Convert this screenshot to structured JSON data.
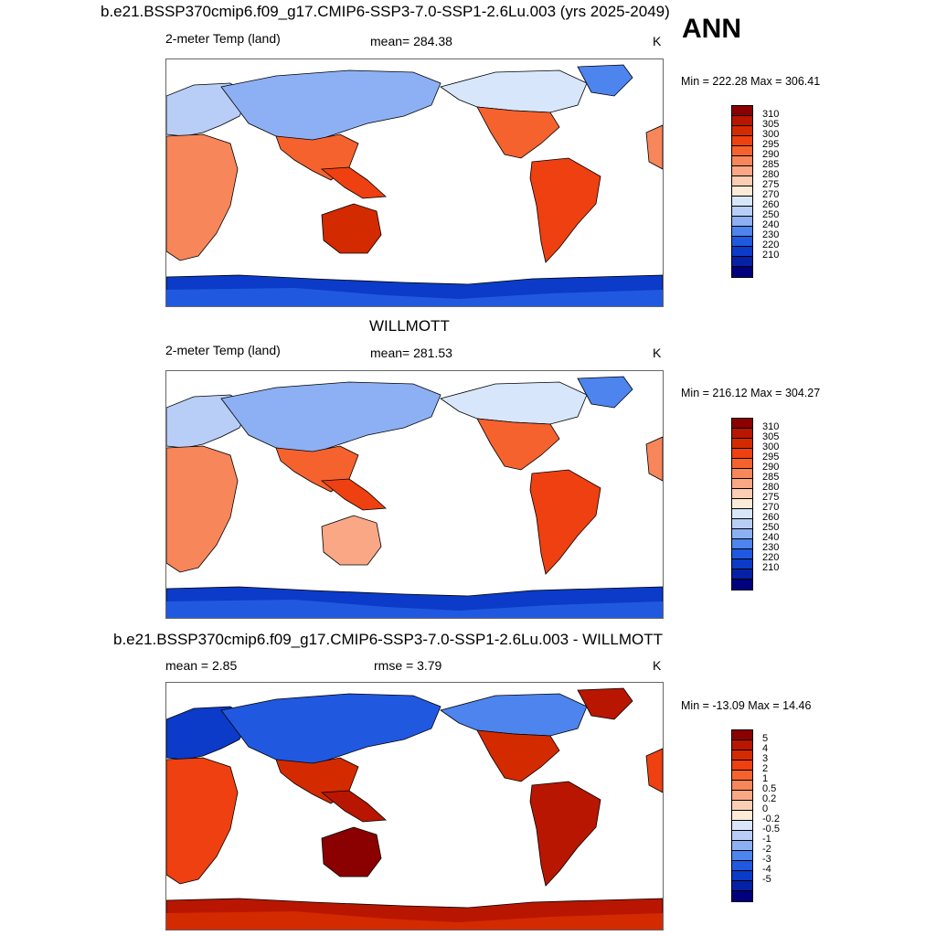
{
  "panels": [
    {
      "title": "b.e21.BSSP370cmip6.f09_g17.CMIP6-SSP3-7.0-SSP1-2.6Lu.003 (yrs 2025-2049)",
      "left_label": "2-meter Temp (land)",
      "center_label": "mean= 284.38",
      "right_label": "K",
      "minmax": "Min = 222.28 Max = 306.41",
      "colorbar_labels": [
        "310",
        "305",
        "300",
        "295",
        "290",
        "285",
        "280",
        "275",
        "270",
        "260",
        "250",
        "240",
        "230",
        "220",
        "210"
      ],
      "colors": [
        "#8b0000",
        "#b81600",
        "#d42a00",
        "#ee4010",
        "#f5622e",
        "#f7865a",
        "#f9a785",
        "#fbcdb3",
        "#fdebd8",
        "#d8e6fb",
        "#b8cef7",
        "#8cb0f3",
        "#4d84ee",
        "#2059e0",
        "#0b3bc8",
        "#0621a5",
        "#00007f"
      ],
      "warm_colors": [
        "#f5622e",
        "#ee4010",
        "#f7865a",
        "#d42a00"
      ],
      "cold_colors": [
        "#b8cef7",
        "#8cb0f3",
        "#d8e6fb",
        "#4d84ee"
      ]
    },
    {
      "title": "WILLMOTT",
      "left_label": "2-meter Temp (land)",
      "center_label": "mean= 281.53",
      "right_label": "K",
      "minmax": "Min = 216.12 Max = 304.27",
      "colorbar_labels": [
        "310",
        "305",
        "300",
        "295",
        "290",
        "285",
        "280",
        "275",
        "270",
        "260",
        "250",
        "240",
        "230",
        "220",
        "210"
      ],
      "colors": [
        "#8b0000",
        "#b81600",
        "#d42a00",
        "#ee4010",
        "#f5622e",
        "#f7865a",
        "#f9a785",
        "#fbcdb3",
        "#fdebd8",
        "#d8e6fb",
        "#b8cef7",
        "#8cb0f3",
        "#4d84ee",
        "#2059e0",
        "#0b3bc8",
        "#0621a5",
        "#00007f"
      ],
      "warm_colors": [
        "#f5622e",
        "#ee4010",
        "#f7865a",
        "#f9a785"
      ],
      "cold_colors": [
        "#b8cef7",
        "#8cb0f3",
        "#d8e6fb",
        "#4d84ee"
      ]
    },
    {
      "title": "b.e21.BSSP370cmip6.f09_g17.CMIP6-SSP3-7.0-SSP1-2.6Lu.003 - WILLMOTT",
      "left_label": "mean =   2.85",
      "center_label": "rmse =   3.79",
      "right_label": "K",
      "minmax": "Min = -13.09 Max =  14.46",
      "colorbar_labels": [
        "5",
        "4",
        "3",
        "2",
        "1",
        "0.5",
        "0.2",
        "0",
        "-0.2",
        "-0.5",
        "-1",
        "-2",
        "-3",
        "-4",
        "-5"
      ],
      "colors": [
        "#8b0000",
        "#b81600",
        "#d42a00",
        "#ee4010",
        "#f5622e",
        "#f7865a",
        "#f9a785",
        "#fbcdb3",
        "#fdebd8",
        "#d8e6fb",
        "#b8cef7",
        "#8cb0f3",
        "#4d84ee",
        "#2059e0",
        "#0b3bc8",
        "#0621a5",
        "#00007f"
      ],
      "warm_colors": [
        "#d42a00",
        "#b81600",
        "#ee4010",
        "#8b0000"
      ],
      "cold_colors": [
        "#0b3bc8",
        "#2059e0",
        "#4d84ee",
        "#b81600"
      ]
    }
  ],
  "season": "ANN"
}
